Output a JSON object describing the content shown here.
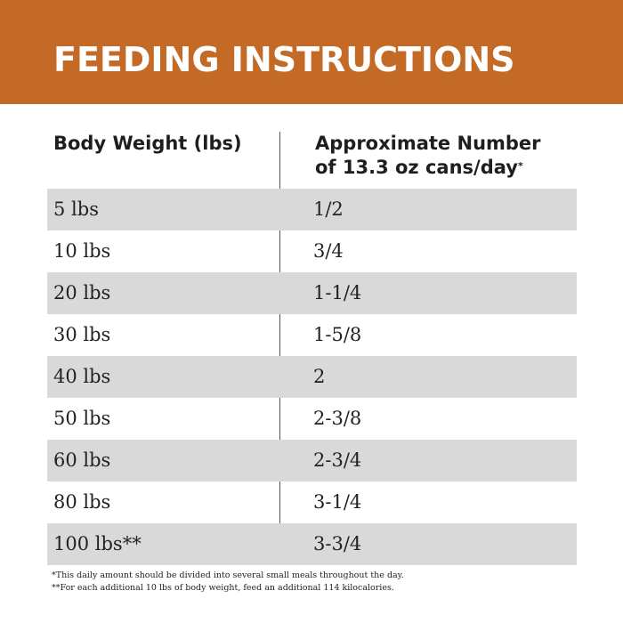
{
  "banner": {
    "title": "FEEDING INSTRUCTIONS",
    "color": "#c46a27"
  },
  "table": {
    "headers": {
      "weight": "Body Weight (lbs)",
      "cans_line1": "Approximate Number",
      "cans_line2": "of 13.3 oz cans/day",
      "cans_marker": "*"
    },
    "rows": [
      {
        "weight": "5 lbs",
        "cans": "1/2"
      },
      {
        "weight": "10 lbs",
        "cans": "3/4"
      },
      {
        "weight": "20 lbs",
        "cans": "1-1/4"
      },
      {
        "weight": "30 lbs",
        "cans": "1-5/8"
      },
      {
        "weight": "40 lbs",
        "cans": "2"
      },
      {
        "weight": "50 lbs",
        "cans": "2-3/8"
      },
      {
        "weight": "60 lbs",
        "cans": "2-3/4"
      },
      {
        "weight": "80 lbs",
        "cans": "3-1/4"
      },
      {
        "weight": "100 lbs**",
        "cans": "3-3/4"
      }
    ],
    "shade_color": "#d9d9d9"
  },
  "footnotes": [
    "*This daily amount should be divided into several small meals throughout the day.",
    "**For each additional 10 lbs of body weight, feed an additional 114 kilocalories."
  ]
}
